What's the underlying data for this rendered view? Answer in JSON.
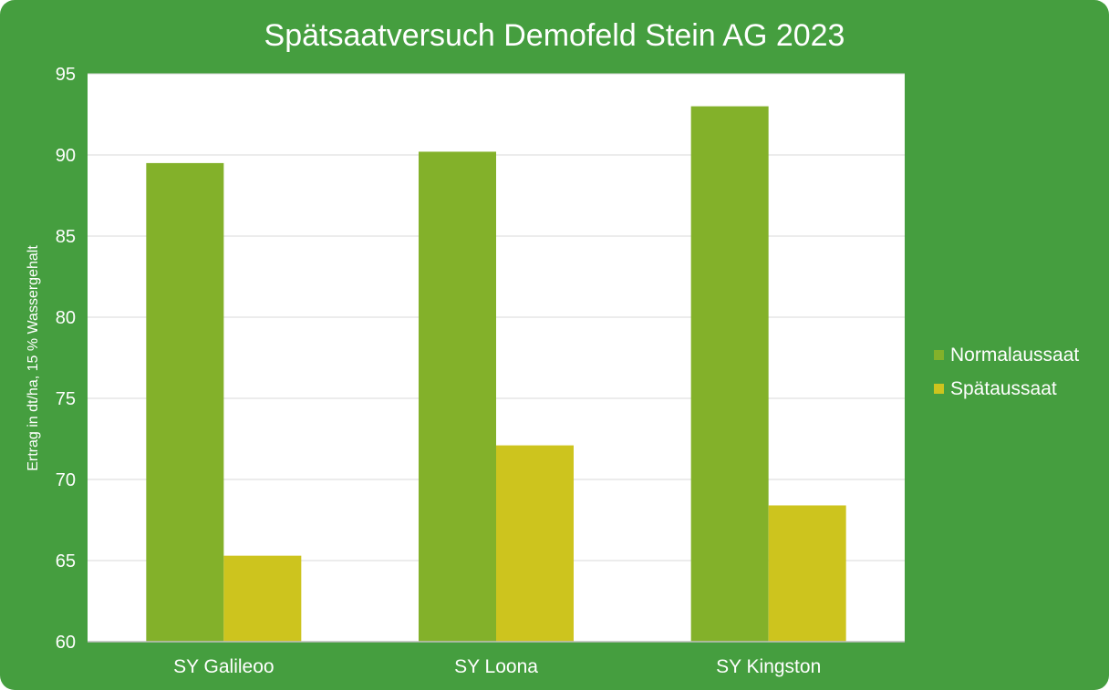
{
  "page": {
    "background": "#459e3f"
  },
  "chart_data": {
    "type": "bar",
    "title": "Spätsaatversuch Demofeld Stein AG 2023",
    "xlabel": "",
    "ylabel": "Ertrag in dt/ha, 15 % Wassergehalt",
    "ylim": [
      60,
      95
    ],
    "yticks": [
      60,
      65,
      70,
      75,
      80,
      85,
      90,
      95
    ],
    "categories": [
      "SY Galileoo",
      "SY Loona",
      "SY Kingston"
    ],
    "series": [
      {
        "name": "Normalaussaat",
        "color": "#83b12a",
        "values": [
          89.5,
          90.2,
          93.0
        ]
      },
      {
        "name": "Spätaussaat",
        "color": "#cdc41e",
        "values": [
          65.3,
          72.1,
          68.4
        ]
      }
    ],
    "grid": true,
    "legend": "right",
    "plot_background": "#ffffff",
    "grid_color": "#d9d9d9"
  }
}
